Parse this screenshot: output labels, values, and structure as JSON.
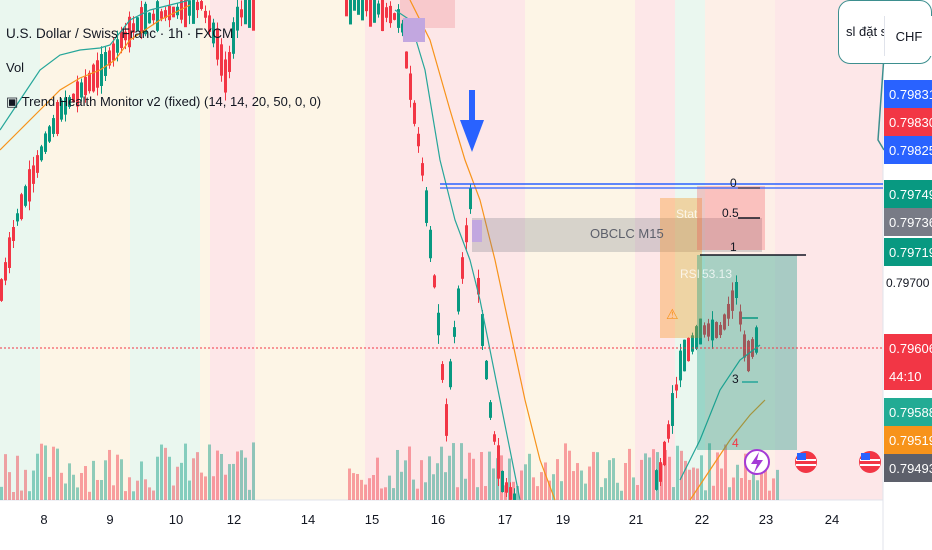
{
  "symbol": {
    "title": "U.S. Dollar / Swiss Franc · 1h · FXCM"
  },
  "indicators": [
    {
      "label": "Vol"
    },
    {
      "label": "Trend Health Monitor v2 (fixed) (14, 14, 20, 50, 0, 0)",
      "icon": "indicator-icon"
    }
  ],
  "callout": {
    "text": "sl đặt s"
  },
  "price_axis": {
    "currency": "CHF",
    "labels": [
      {
        "value": "0.79831",
        "color": "#2962ff"
      },
      {
        "value": "0.79830",
        "color": "#f23645"
      },
      {
        "value": "0.79825",
        "color": "#2962ff"
      },
      {
        "value": "0.79749",
        "color": "#089981"
      },
      {
        "value": "0.79736",
        "color": "#787b86"
      },
      {
        "value": "0.79719",
        "color": "#089981"
      },
      {
        "value": "0.79700",
        "color": ""
      },
      {
        "value": "0.79606",
        "color": "#f23645"
      },
      {
        "value": "44:10",
        "color": "#f23645"
      },
      {
        "value": "0.79588",
        "color": "#22ab94"
      },
      {
        "value": "0.79519",
        "color": "#f7931a"
      },
      {
        "value": "0.79493",
        "color": "#5d606b"
      }
    ]
  },
  "time_axis": {
    "labels": [
      "8",
      "9",
      "10",
      "12",
      "14",
      "15",
      "16",
      "17",
      "19",
      "21",
      "22",
      "23",
      "24"
    ]
  },
  "drawings": {
    "order_block_label": "OBCLC M15",
    "fib_levels": [
      "0",
      "0.5",
      "1"
    ],
    "wave_numbers": [
      "3",
      "4"
    ],
    "box_text": [
      "Stat",
      "RSI",
      "53.13"
    ],
    "warning": "⚠"
  },
  "colors": {
    "bull": "#089981",
    "bear": "#f23645",
    "ema_fast": "#26a69a",
    "ema_slow": "#f7931a",
    "level_line": "#2962ff",
    "arrow": "#2962ff"
  },
  "events": [
    {
      "icon": "lightning-icon"
    },
    {
      "icon": "us-flag-icon"
    },
    {
      "icon": "us-flag-icon"
    }
  ]
}
